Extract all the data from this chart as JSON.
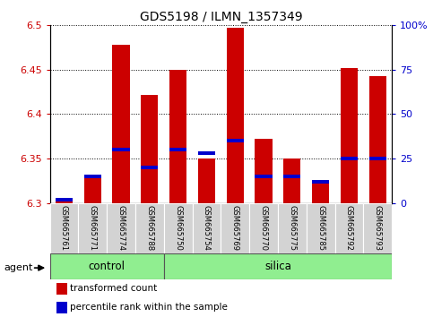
{
  "title": "GDS5198 / ILMN_1357349",
  "samples": [
    "GSM665761",
    "GSM665771",
    "GSM665774",
    "GSM665788",
    "GSM665750",
    "GSM665754",
    "GSM665769",
    "GSM665770",
    "GSM665775",
    "GSM665785",
    "GSM665792",
    "GSM665793"
  ],
  "groups": [
    "control",
    "control",
    "control",
    "control",
    "silica",
    "silica",
    "silica",
    "silica",
    "silica",
    "silica",
    "silica",
    "silica"
  ],
  "transformed_count": [
    6.305,
    6.332,
    6.478,
    6.422,
    6.45,
    6.35,
    6.497,
    6.372,
    6.35,
    6.322,
    6.452,
    6.443
  ],
  "percentile_rank": [
    2,
    15,
    30,
    20,
    30,
    28,
    35,
    15,
    15,
    12,
    25,
    25
  ],
  "ylim_left": [
    6.3,
    6.5
  ],
  "ylim_right": [
    0,
    100
  ],
  "yticks_left": [
    6.3,
    6.35,
    6.4,
    6.45,
    6.5
  ],
  "yticks_right": [
    0,
    25,
    50,
    75,
    100
  ],
  "bar_color": "#cc0000",
  "percentile_color": "#0000cc",
  "baseline": 6.3,
  "bar_width": 0.6,
  "group_bg_color": "#90ee90",
  "sample_box_color": "#d3d3d3",
  "label_color_left": "#cc0000",
  "label_color_right": "#0000cc",
  "agent_label": "agent",
  "group_control_label": "control",
  "group_silica_label": "silica",
  "n_control": 4,
  "legend_red": "transformed count",
  "legend_blue": "percentile rank within the sample"
}
